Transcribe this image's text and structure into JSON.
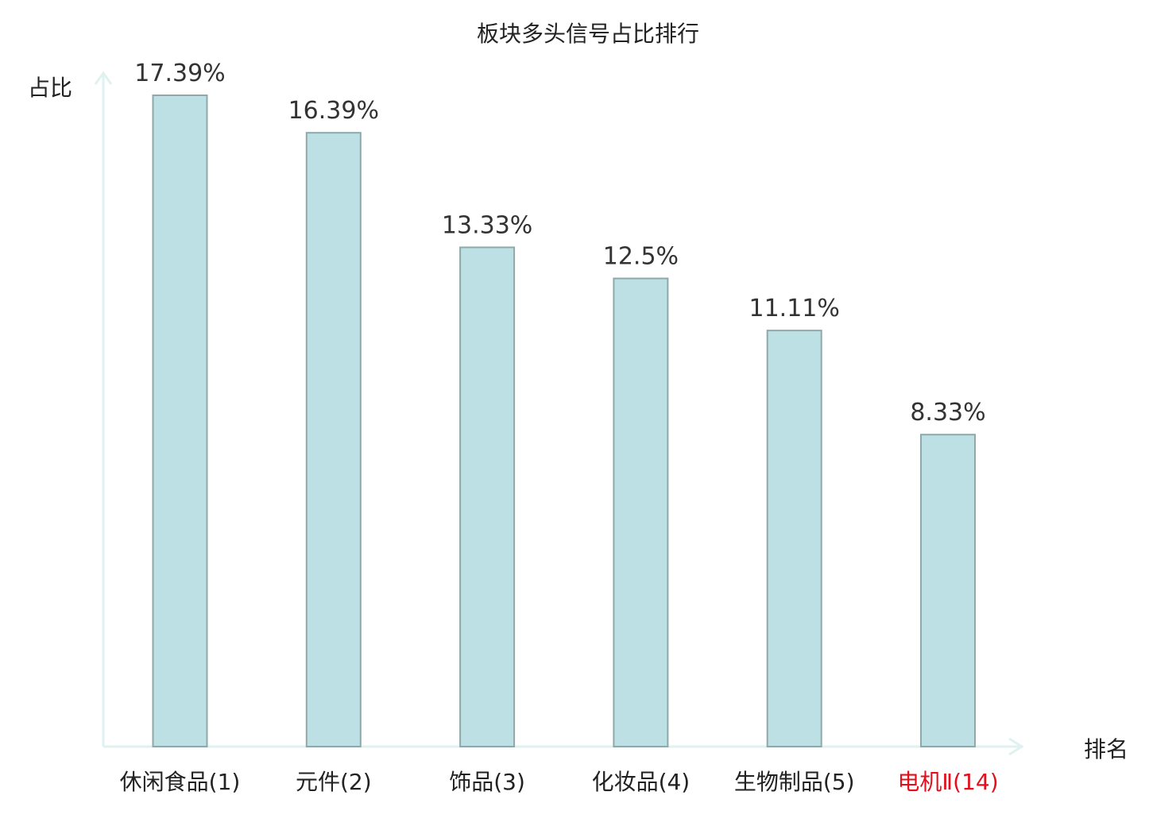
{
  "chart_data": {
    "type": "bar",
    "title": "板块多头信号占比排行",
    "xlabel": "排名",
    "ylabel": "占比",
    "categories": [
      "休闲食品(1)",
      "元件(2)",
      "饰品(3)",
      "化妆品(4)",
      "生物制品(5)",
      "电机Ⅱ(14)"
    ],
    "values": [
      17.39,
      16.39,
      13.33,
      12.5,
      11.11,
      8.33
    ],
    "value_labels": [
      "17.39%",
      "16.39%",
      "13.33%",
      "12.5%",
      "11.11%",
      "8.33%"
    ],
    "highlighted_category": "电机Ⅱ(14)",
    "ylim": [
      0,
      17.39
    ],
    "grid": false,
    "legend": "none",
    "colors": {
      "bar_fill": "#bce0e3",
      "bar_stroke": "#8fa9ab",
      "axis": "#dff2f0",
      "text": "#333333",
      "highlight": "#e3101b"
    }
  }
}
